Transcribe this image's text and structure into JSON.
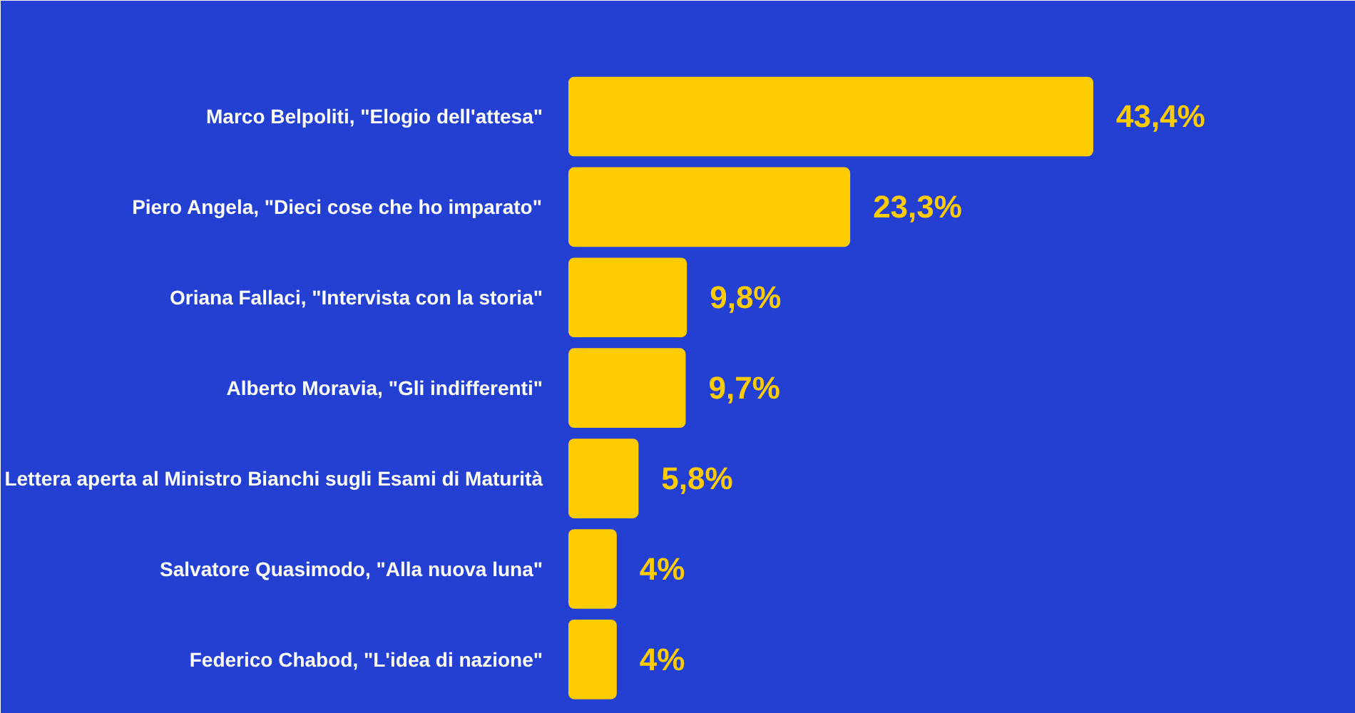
{
  "chart_data": {
    "type": "bar",
    "orientation": "horizontal",
    "categories": [
      "Marco Belpoliti, \"Elogio dell'attesa\"",
      "Piero Angela, \"Dieci cose che ho imparato\"",
      "Oriana Fallaci, \"Intervista con la storia\"",
      "Alberto Moravia, \"Gli indifferenti\"",
      "Lettera aperta al Ministro Bianchi sugli Esami di Maturità",
      "Salvatore Quasimodo, \"Alla nuova luna\"",
      "Federico Chabod, \"L'idea di nazione\""
    ],
    "values": [
      43.4,
      23.3,
      9.8,
      9.7,
      5.8,
      4,
      4
    ],
    "value_labels": [
      "43,4%",
      "23,3%",
      "9,8%",
      "9,7%",
      "5,8%",
      "4%",
      "4%"
    ],
    "color": "#ffcc00"
  }
}
